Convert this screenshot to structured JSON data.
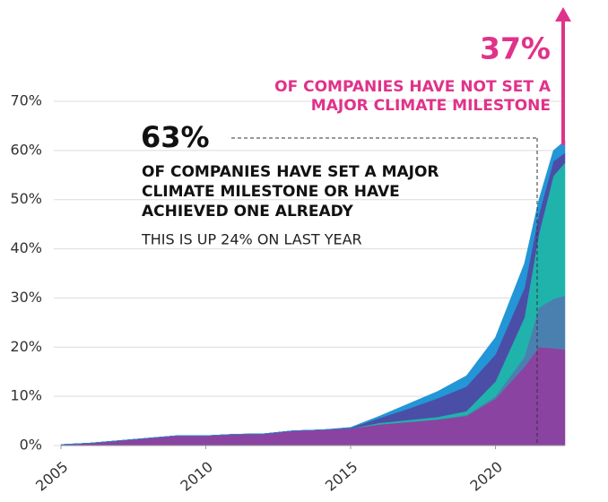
{
  "chart_data": {
    "type": "stacked_area",
    "x": [
      2005,
      2006,
      2007,
      2008,
      2009,
      2010,
      2011,
      2012,
      2013,
      2014,
      2015,
      2016,
      2017,
      2018,
      2019,
      2020,
      2021,
      2021.5,
      2022,
      2022.4
    ],
    "series": [
      {
        "color": "#8a43a0",
        "values": [
          0.2,
          0.5,
          1,
          1.5,
          2,
          2,
          2.3,
          2.4,
          3,
          3.2,
          3.5,
          4.3,
          4.8,
          5.3,
          6,
          9.5,
          16,
          20,
          19.8,
          19.5
        ]
      },
      {
        "color": "#4a80b0",
        "values": [
          0,
          0,
          0,
          0,
          0,
          0,
          0,
          0,
          0,
          0,
          0,
          0,
          0,
          0,
          0.2,
          0.5,
          2,
          8,
          10,
          11
        ]
      },
      {
        "color": "#1fb3ac",
        "values": [
          0,
          0,
          0,
          0,
          0,
          0,
          0,
          0,
          0,
          0,
          0,
          0.3,
          0.4,
          0.5,
          0.8,
          3,
          8,
          15,
          25,
          27
        ]
      },
      {
        "color": "#4b4ea6",
        "values": [
          0,
          0,
          0,
          0,
          0,
          0,
          0,
          0,
          0,
          0,
          0.1,
          1,
          2.3,
          3.8,
          5,
          5.5,
          6,
          4,
          3,
          2
        ]
      },
      {
        "color": "#2296d6",
        "values": [
          0,
          0,
          0,
          0,
          0,
          0,
          0,
          0,
          0,
          0,
          0.1,
          0.4,
          1,
          1.4,
          2.2,
          3.5,
          5,
          3,
          2.2,
          2.5
        ]
      }
    ],
    "xlim": [
      2005,
      2022.4
    ],
    "xticks": [
      2005,
      2010,
      2015,
      2020
    ],
    "ylim": [
      0,
      70
    ],
    "yticks": [
      {
        "value": 0,
        "label": "0%"
      },
      {
        "value": 10,
        "label": "10%"
      },
      {
        "value": 20,
        "label": "20%"
      },
      {
        "value": 30,
        "label": "30%"
      },
      {
        "value": 40,
        "label": "40%"
      },
      {
        "value": 50,
        "label": "50%"
      },
      {
        "value": 60,
        "label": "60%"
      },
      {
        "value": 70,
        "label": "70%"
      }
    ],
    "grid": true,
    "annotations": {
      "not_set_value": "37%",
      "not_set_text": [
        "OF COMPANIES HAVE NOT SET A",
        "MAJOR CLIMATE MILESTONE"
      ],
      "set_value": "63%",
      "set_text": [
        "OF COMPANIES HAVE SET A MAJOR",
        "CLIMATE MILESTONE OR HAVE",
        "ACHIEVED ONE ALREADY"
      ],
      "change_text": "THIS IS UP 24% ON LAST YEAR"
    }
  }
}
